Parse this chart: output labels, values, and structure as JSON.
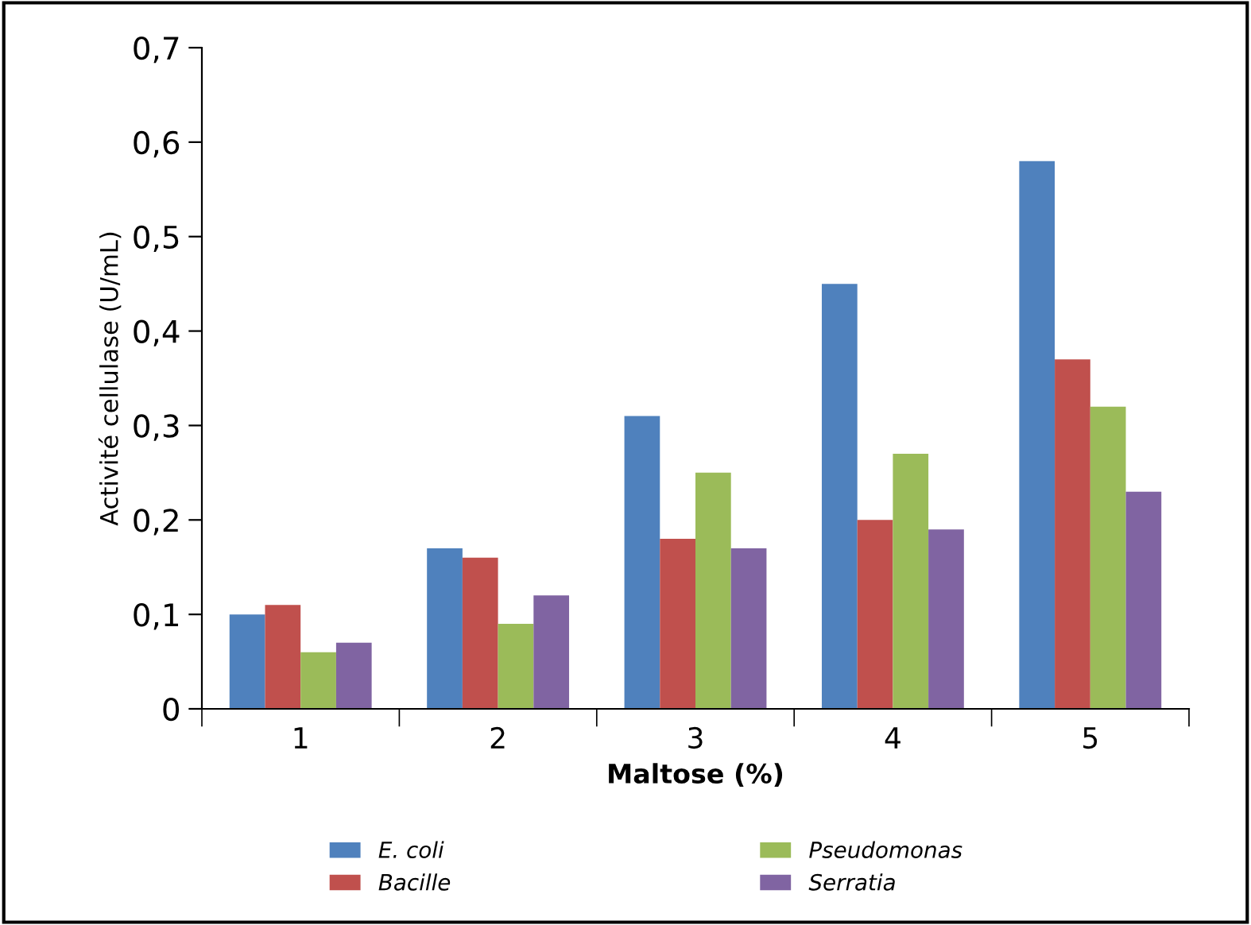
{
  "chart_data": {
    "type": "bar",
    "xlabel": "Maltose (%)",
    "ylabel": "Activité cellulase (U/mL)",
    "categories": [
      "1",
      "2",
      "3",
      "4",
      "5"
    ],
    "series": [
      {
        "name": "E. coli",
        "color": "#4f81bd",
        "values": [
          0.1,
          0.17,
          0.31,
          0.45,
          0.58
        ]
      },
      {
        "name": "Bacille",
        "color": "#c0504d",
        "values": [
          0.11,
          0.16,
          0.18,
          0.2,
          0.37
        ]
      },
      {
        "name": "Pseudomonas",
        "color": "#9bbb59",
        "values": [
          0.06,
          0.09,
          0.25,
          0.27,
          0.32
        ]
      },
      {
        "name": "Serratia",
        "color": "#8064a2",
        "values": [
          0.07,
          0.12,
          0.17,
          0.19,
          0.23
        ]
      }
    ],
    "ylim": [
      0,
      0.7
    ],
    "yticks": [
      0,
      {
        "value": 0.1,
        "label": "0,1"
      },
      {
        "value": 0.2,
        "label": "0,2"
      },
      {
        "value": 0.3,
        "label": "0,3"
      },
      {
        "value": 0.4,
        "label": "0,4"
      },
      {
        "value": 0.5,
        "label": "0,5"
      },
      {
        "value": 0.6,
        "label": "0,6"
      },
      {
        "value": 0.7,
        "label": "0,7"
      }
    ],
    "grid": false,
    "legend": "bottom"
  }
}
